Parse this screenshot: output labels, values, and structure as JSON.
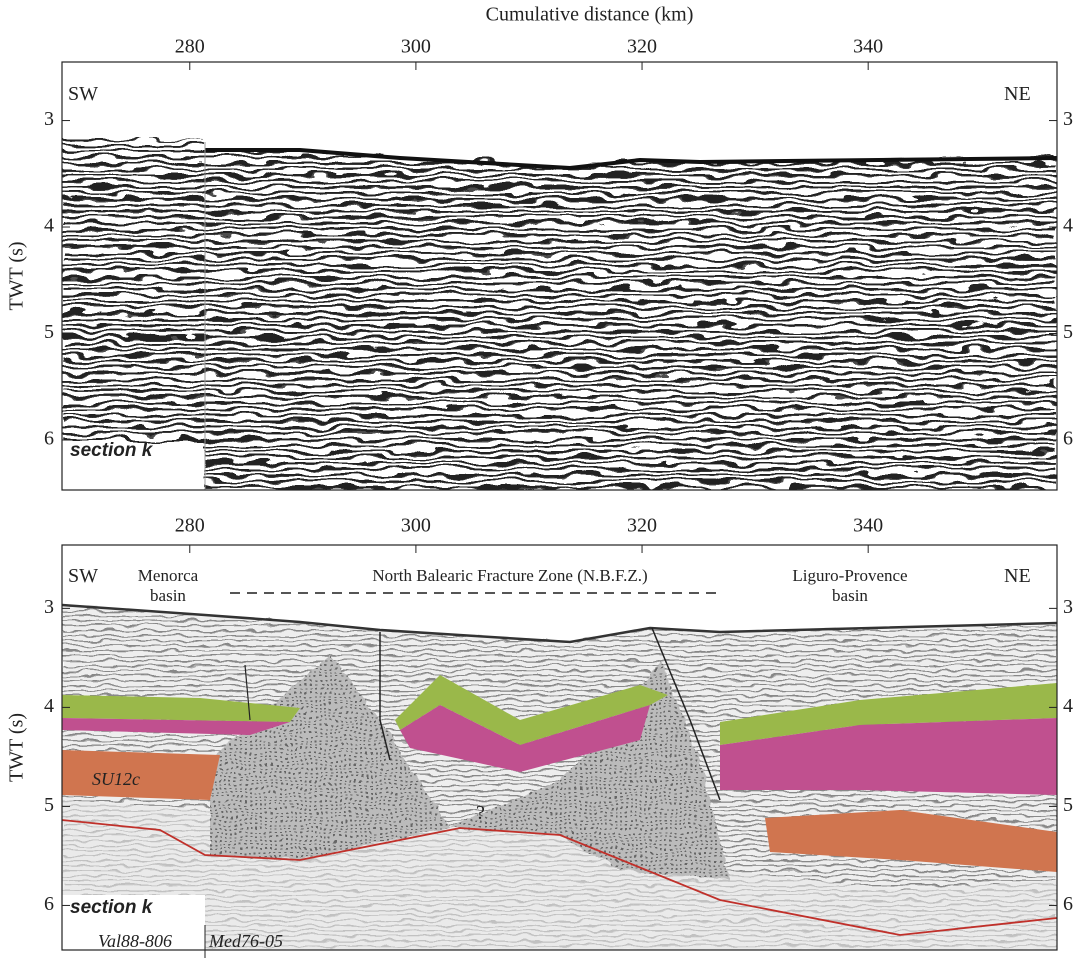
{
  "chart_data": [
    {
      "type": "seismic-section",
      "x_label": "Cumulative distance (km)",
      "y_label": "TWT (s)",
      "xlim": [
        268.7,
        356.7
      ],
      "ylim": [
        2.45,
        6.47
      ],
      "y_inverted": true,
      "xticks": [
        280,
        300,
        320,
        340
      ],
      "yticks": [
        3,
        4,
        5,
        6
      ],
      "annotations": [
        "SW",
        "NE",
        "section k"
      ]
    },
    {
      "type": "seismic-section",
      "y_label": "TWT (s)",
      "xlim": [
        268.7,
        356.7
      ],
      "ylim": [
        2.36,
        6.45
      ],
      "y_inverted": true,
      "xticks": [
        280,
        300,
        320,
        340
      ],
      "yticks": [
        3,
        4,
        5,
        6
      ],
      "annotations": [
        "SW",
        "NE",
        "Menorca basin",
        "North Balearic Fracture Zone (N.B.F.Z.)",
        "Liguro-Provence basin",
        "SU12c",
        "?",
        "section k",
        "Val88-806",
        "Med76-05"
      ]
    }
  ]
}
